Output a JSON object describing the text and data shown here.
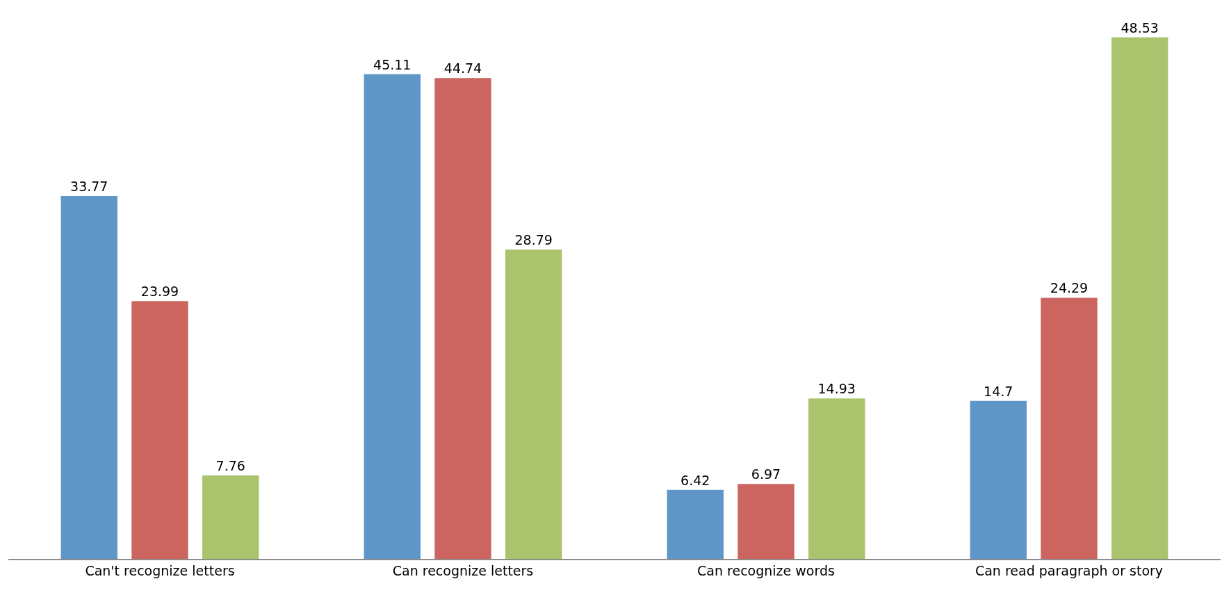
{
  "chart_data": {
    "type": "bar",
    "categories": [
      "Can't recognize letters",
      "Can recognize letters",
      "Can recognize words",
      "Can read paragraph or story"
    ],
    "series": [
      {
        "color": "#5f96c8",
        "values": [
          33.77,
          45.11,
          6.42,
          14.7
        ]
      },
      {
        "color": "#cc6560",
        "values": [
          23.99,
          44.74,
          6.97,
          24.29
        ]
      },
      {
        "color": "#a9c46c",
        "values": [
          7.76,
          28.79,
          14.93,
          48.53
        ]
      }
    ],
    "data_labels": true
  }
}
